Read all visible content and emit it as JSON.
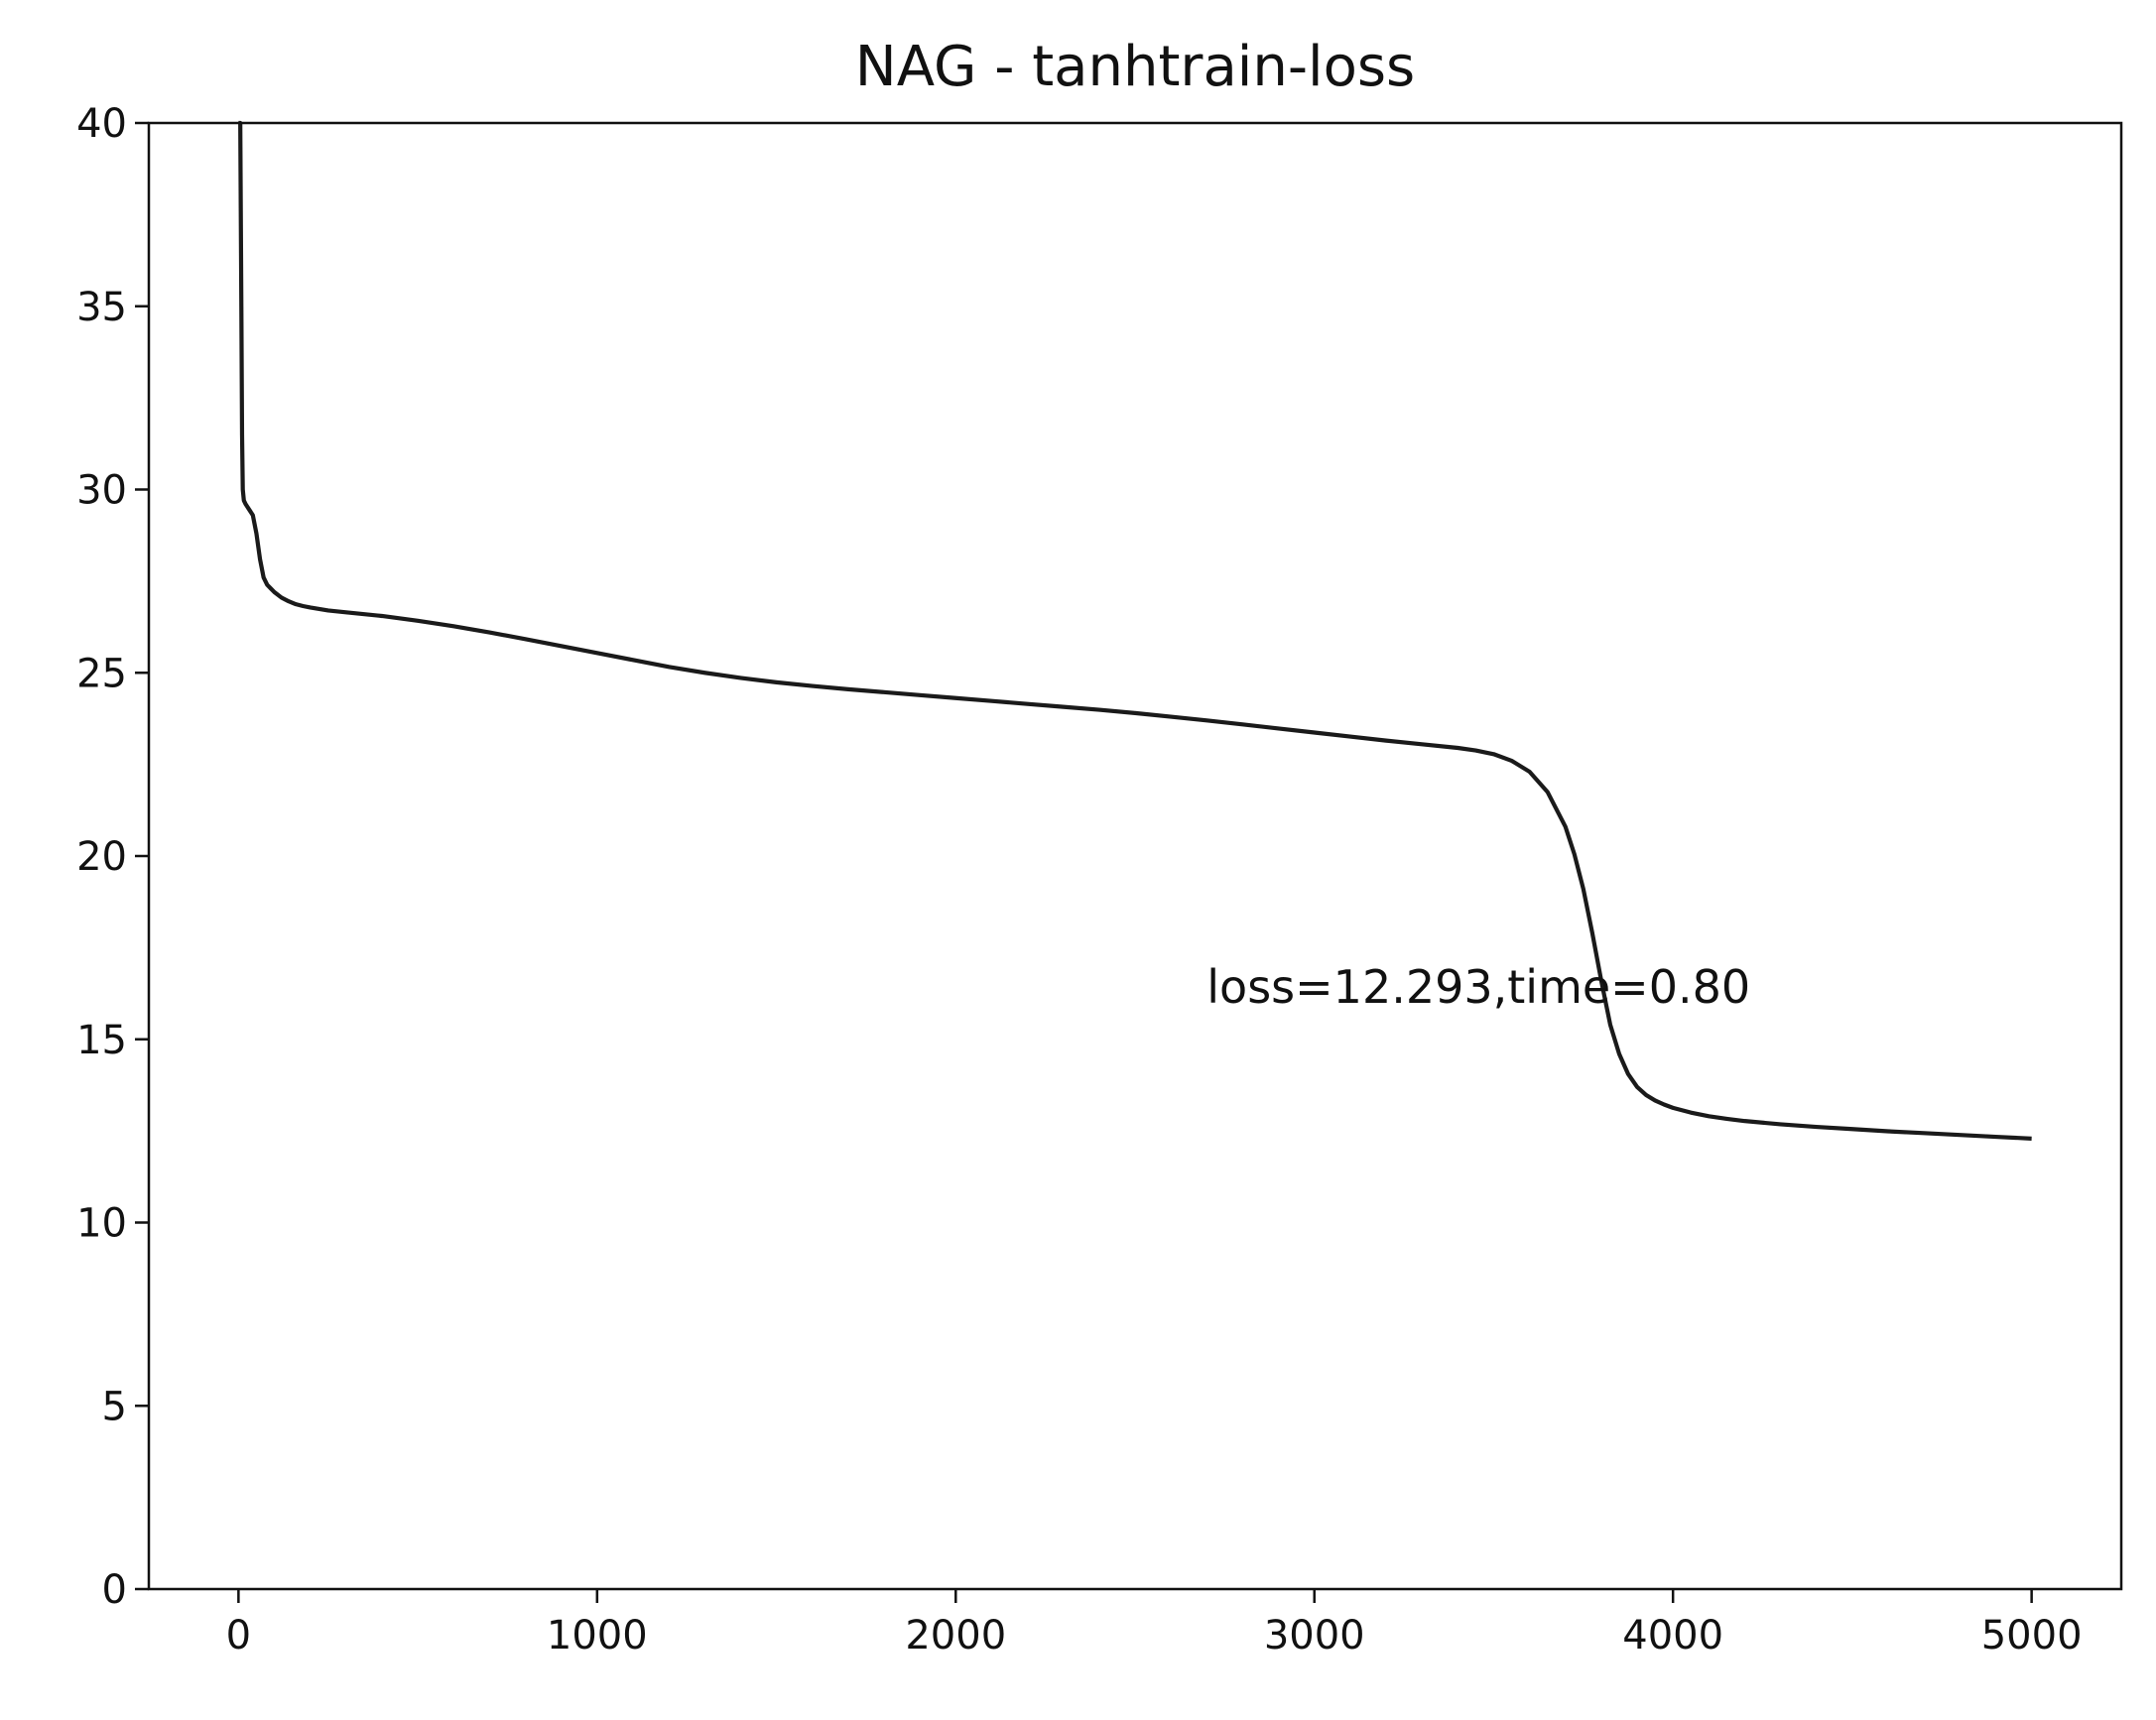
{
  "chart_data": {
    "type": "line",
    "title": "NAG - tanhtrain-loss",
    "xlabel": "",
    "ylabel": "",
    "xlim": [
      -250,
      5250
    ],
    "ylim": [
      0,
      40
    ],
    "x_ticks": [
      0,
      1000,
      2000,
      3000,
      4000,
      5000
    ],
    "x_tick_labels": [
      "0",
      "1000",
      "2000",
      "3000",
      "4000",
      "5000"
    ],
    "y_ticks": [
      0,
      5,
      10,
      15,
      20,
      25,
      30,
      35,
      40
    ],
    "y_tick_labels": [
      "0",
      "5",
      "10",
      "15",
      "20",
      "25",
      "30",
      "35",
      "40"
    ],
    "grid": false,
    "legend": "none",
    "line_color": "#1a1a1a",
    "annotation": {
      "text": "loss=12.293,time=0.80",
      "x": 2700,
      "y": 16
    },
    "series": [
      {
        "x": [
          0,
          5,
          8,
          10,
          12,
          15,
          20,
          30,
          40,
          50,
          60,
          70,
          80,
          90,
          100,
          120,
          140,
          160,
          180,
          200,
          250,
          300,
          400,
          500,
          600,
          700,
          800,
          900,
          1000,
          1100,
          1200,
          1300,
          1400,
          1500,
          1600,
          1700,
          1800,
          1900,
          2000,
          2100,
          2200,
          2300,
          2400,
          2500,
          2600,
          2700,
          2800,
          2900,
          3000,
          3100,
          3200,
          3300,
          3400,
          3450,
          3500,
          3550,
          3600,
          3650,
          3700,
          3725,
          3750,
          3775,
          3800,
          3825,
          3850,
          3875,
          3900,
          3925,
          3950,
          3975,
          4000,
          4050,
          4100,
          4150,
          4200,
          4300,
          4400,
          4500,
          4600,
          4700,
          4800,
          4900,
          5000
        ],
        "y": [
          40.0,
          40.0,
          35.0,
          31.5,
          30.0,
          29.7,
          29.6,
          29.45,
          29.3,
          28.8,
          28.1,
          27.6,
          27.4,
          27.3,
          27.2,
          27.05,
          26.95,
          26.87,
          26.82,
          26.78,
          26.7,
          26.65,
          26.55,
          26.42,
          26.27,
          26.1,
          25.92,
          25.73,
          25.54,
          25.35,
          25.16,
          25.0,
          24.86,
          24.74,
          24.64,
          24.55,
          24.47,
          24.39,
          24.31,
          24.23,
          24.15,
          24.07,
          23.99,
          23.9,
          23.8,
          23.7,
          23.59,
          23.48,
          23.37,
          23.26,
          23.15,
          23.05,
          22.95,
          22.88,
          22.78,
          22.6,
          22.3,
          21.75,
          20.8,
          20.05,
          19.1,
          17.9,
          16.6,
          15.4,
          14.6,
          14.05,
          13.7,
          13.48,
          13.33,
          13.22,
          13.13,
          13.0,
          12.9,
          12.83,
          12.77,
          12.68,
          12.61,
          12.55,
          12.49,
          12.44,
          12.39,
          12.34,
          12.29
        ]
      }
    ]
  }
}
